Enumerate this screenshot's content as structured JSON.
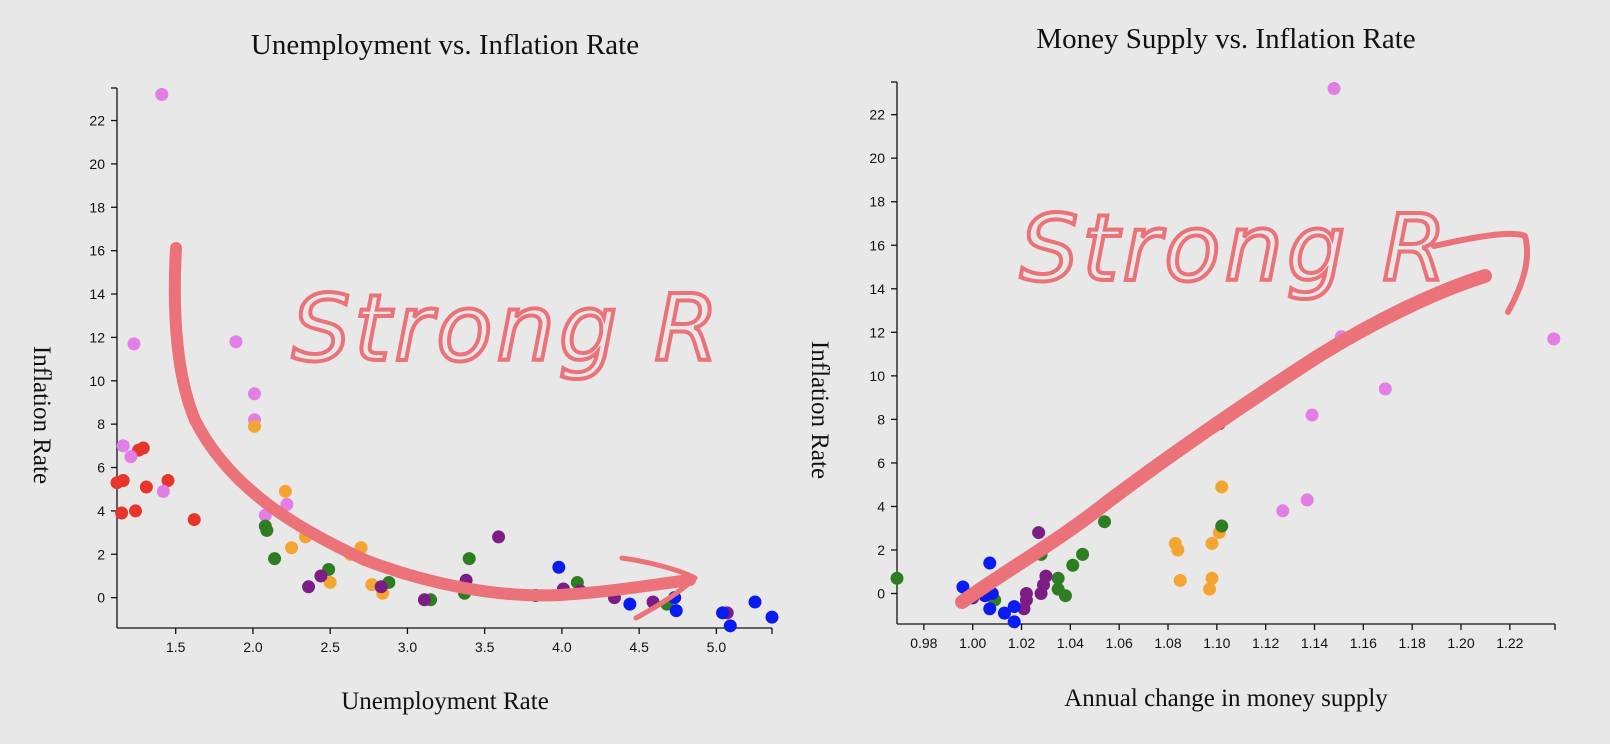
{
  "colors": {
    "red": "#e8352b",
    "violet": "#e27ee5",
    "orange": "#f4a531",
    "green": "#2e7d22",
    "purple": "#7b1d84",
    "blue": "#0a1bf0",
    "ink": "#ea7278",
    "background": "#e8e8e8"
  },
  "annotations": {
    "left_text": "Strong R",
    "right_text": "Strong R"
  },
  "chart_data": [
    {
      "type": "scatter",
      "title": "Unemployment vs. Inflation Rate",
      "xlabel": "Unemployment Rate",
      "ylabel": "Inflation Rate",
      "xlim": [
        1.12,
        5.36
      ],
      "ylim": [
        -1.4,
        23.5
      ],
      "grid": false,
      "x_ticks": [
        "1.5",
        "2.0",
        "2.5",
        "3.0",
        "3.5",
        "4.0",
        "4.5",
        "5.0"
      ],
      "y_ticks": [
        "0",
        "2",
        "4",
        "6",
        "8",
        "10",
        "12",
        "14",
        "16",
        "18",
        "20",
        "22"
      ],
      "points": [
        {
          "x": 1.12,
          "y": 5.3,
          "c": "red"
        },
        {
          "x": 1.16,
          "y": 5.4,
          "c": "red"
        },
        {
          "x": 1.15,
          "y": 3.9,
          "c": "red"
        },
        {
          "x": 1.24,
          "y": 4.0,
          "c": "red"
        },
        {
          "x": 1.26,
          "y": 6.8,
          "c": "red"
        },
        {
          "x": 1.29,
          "y": 6.9,
          "c": "red"
        },
        {
          "x": 1.31,
          "y": 5.1,
          "c": "red"
        },
        {
          "x": 1.45,
          "y": 5.4,
          "c": "red"
        },
        {
          "x": 1.62,
          "y": 3.6,
          "c": "red"
        },
        {
          "x": 1.16,
          "y": 7.0,
          "c": "violet"
        },
        {
          "x": 1.21,
          "y": 6.5,
          "c": "violet"
        },
        {
          "x": 1.23,
          "y": 11.7,
          "c": "violet"
        },
        {
          "x": 1.41,
          "y": 23.2,
          "c": "violet"
        },
        {
          "x": 1.42,
          "y": 4.9,
          "c": "violet"
        },
        {
          "x": 1.89,
          "y": 11.8,
          "c": "violet"
        },
        {
          "x": 2.01,
          "y": 9.4,
          "c": "violet"
        },
        {
          "x": 2.01,
          "y": 8.2,
          "c": "violet"
        },
        {
          "x": 2.08,
          "y": 3.8,
          "c": "violet"
        },
        {
          "x": 2.22,
          "y": 4.3,
          "c": "violet"
        },
        {
          "x": 2.01,
          "y": 7.9,
          "c": "orange"
        },
        {
          "x": 2.21,
          "y": 4.9,
          "c": "orange"
        },
        {
          "x": 2.25,
          "y": 2.3,
          "c": "orange"
        },
        {
          "x": 2.34,
          "y": 2.8,
          "c": "orange"
        },
        {
          "x": 2.5,
          "y": 0.7,
          "c": "orange"
        },
        {
          "x": 2.63,
          "y": 2.0,
          "c": "orange"
        },
        {
          "x": 2.66,
          "y": 2.0,
          "c": "orange"
        },
        {
          "x": 2.7,
          "y": 2.3,
          "c": "orange"
        },
        {
          "x": 2.77,
          "y": 0.6,
          "c": "orange"
        },
        {
          "x": 2.84,
          "y": 0.2,
          "c": "orange"
        },
        {
          "x": 2.08,
          "y": 3.3,
          "c": "green"
        },
        {
          "x": 2.09,
          "y": 3.1,
          "c": "green"
        },
        {
          "x": 2.14,
          "y": 1.8,
          "c": "green"
        },
        {
          "x": 2.49,
          "y": 1.3,
          "c": "green"
        },
        {
          "x": 2.88,
          "y": 0.7,
          "c": "green"
        },
        {
          "x": 3.15,
          "y": -0.1,
          "c": "green"
        },
        {
          "x": 3.37,
          "y": 0.2,
          "c": "green"
        },
        {
          "x": 3.4,
          "y": 1.8,
          "c": "green"
        },
        {
          "x": 4.1,
          "y": 0.7,
          "c": "green"
        },
        {
          "x": 4.68,
          "y": -0.3,
          "c": "green"
        },
        {
          "x": 2.36,
          "y": 0.5,
          "c": "purple"
        },
        {
          "x": 2.44,
          "y": 1.0,
          "c": "purple"
        },
        {
          "x": 2.83,
          "y": 0.5,
          "c": "purple"
        },
        {
          "x": 3.11,
          "y": -0.1,
          "c": "purple"
        },
        {
          "x": 3.38,
          "y": 0.8,
          "c": "purple"
        },
        {
          "x": 3.59,
          "y": 2.8,
          "c": "purple"
        },
        {
          "x": 3.83,
          "y": 0.1,
          "c": "purple"
        },
        {
          "x": 4.01,
          "y": 0.4,
          "c": "purple"
        },
        {
          "x": 4.12,
          "y": 0.3,
          "c": "purple"
        },
        {
          "x": 4.34,
          "y": 0.0,
          "c": "purple"
        },
        {
          "x": 4.59,
          "y": -0.2,
          "c": "purple"
        },
        {
          "x": 5.07,
          "y": -0.7,
          "c": "purple"
        },
        {
          "x": 3.98,
          "y": 1.4,
          "c": "blue"
        },
        {
          "x": 4.44,
          "y": -0.3,
          "c": "blue"
        },
        {
          "x": 4.73,
          "y": 0.0,
          "c": "blue"
        },
        {
          "x": 4.74,
          "y": -0.6,
          "c": "blue"
        },
        {
          "x": 5.04,
          "y": -0.7,
          "c": "blue"
        },
        {
          "x": 5.09,
          "y": -1.3,
          "c": "blue"
        },
        {
          "x": 5.25,
          "y": -0.2,
          "c": "blue"
        },
        {
          "x": 5.36,
          "y": -0.9,
          "c": "blue"
        }
      ]
    },
    {
      "type": "scatter",
      "title": "Money Supply vs. Inflation Rate",
      "xlabel": "Annual change in money supply",
      "ylabel": "Inflation Rate",
      "xlim": [
        0.969,
        1.2385
      ],
      "ylim": [
        -1.4,
        23.5
      ],
      "grid": false,
      "x_ticks": [
        "0.98",
        "1.00",
        "1.02",
        "1.04",
        "1.06",
        "1.08",
        "1.10",
        "1.12",
        "1.14",
        "1.16",
        "1.18",
        "1.20",
        "1.22"
      ],
      "y_ticks": [
        "0",
        "2",
        "4",
        "6",
        "8",
        "10",
        "12",
        "14",
        "16",
        "18",
        "20",
        "22"
      ],
      "points": [
        {
          "x": 1.101,
          "y": 7.8,
          "c": "red"
        },
        {
          "x": 1.148,
          "y": 23.2,
          "c": "violet"
        },
        {
          "x": 1.238,
          "y": 11.7,
          "c": "violet"
        },
        {
          "x": 1.151,
          "y": 11.8,
          "c": "violet"
        },
        {
          "x": 1.169,
          "y": 9.4,
          "c": "violet"
        },
        {
          "x": 1.139,
          "y": 8.2,
          "c": "violet"
        },
        {
          "x": 1.127,
          "y": 3.8,
          "c": "violet"
        },
        {
          "x": 1.137,
          "y": 4.3,
          "c": "violet"
        },
        {
          "x": 1.102,
          "y": 4.9,
          "c": "orange"
        },
        {
          "x": 1.083,
          "y": 2.3,
          "c": "orange"
        },
        {
          "x": 1.084,
          "y": 2.0,
          "c": "orange"
        },
        {
          "x": 1.085,
          "y": 0.6,
          "c": "orange"
        },
        {
          "x": 1.098,
          "y": 2.3,
          "c": "orange"
        },
        {
          "x": 1.101,
          "y": 2.8,
          "c": "orange"
        },
        {
          "x": 1.098,
          "y": 0.7,
          "c": "orange"
        },
        {
          "x": 1.097,
          "y": 0.2,
          "c": "orange"
        },
        {
          "x": 0.969,
          "y": 0.7,
          "c": "green"
        },
        {
          "x": 1.054,
          "y": 3.3,
          "c": "green"
        },
        {
          "x": 1.102,
          "y": 3.1,
          "c": "green"
        },
        {
          "x": 1.045,
          "y": 1.8,
          "c": "green"
        },
        {
          "x": 1.041,
          "y": 1.3,
          "c": "green"
        },
        {
          "x": 1.028,
          "y": 1.8,
          "c": "green"
        },
        {
          "x": 1.035,
          "y": 0.7,
          "c": "green"
        },
        {
          "x": 1.035,
          "y": 0.2,
          "c": "green"
        },
        {
          "x": 1.038,
          "y": -0.1,
          "c": "green"
        },
        {
          "x": 1.009,
          "y": -0.3,
          "c": "green"
        },
        {
          "x": 1.027,
          "y": 2.8,
          "c": "purple"
        },
        {
          "x": 1.03,
          "y": 0.8,
          "c": "purple"
        },
        {
          "x": 1.029,
          "y": 0.4,
          "c": "purple"
        },
        {
          "x": 1.028,
          "y": 0.0,
          "c": "purple"
        },
        {
          "x": 1.022,
          "y": 0.0,
          "c": "purple"
        },
        {
          "x": 1.022,
          "y": -0.3,
          "c": "purple"
        },
        {
          "x": 1.021,
          "y": -0.7,
          "c": "purple"
        },
        {
          "x": 1.0,
          "y": -0.2,
          "c": "purple"
        },
        {
          "x": 1.007,
          "y": 1.4,
          "c": "blue"
        },
        {
          "x": 0.996,
          "y": 0.3,
          "c": "blue"
        },
        {
          "x": 1.002,
          "y": 0.1,
          "c": "blue"
        },
        {
          "x": 1.005,
          "y": -0.1,
          "c": "blue"
        },
        {
          "x": 1.008,
          "y": 0.0,
          "c": "blue"
        },
        {
          "x": 1.007,
          "y": -0.7,
          "c": "blue"
        },
        {
          "x": 1.013,
          "y": -0.9,
          "c": "blue"
        },
        {
          "x": 1.017,
          "y": -0.6,
          "c": "blue"
        },
        {
          "x": 1.017,
          "y": -1.3,
          "c": "blue"
        },
        {
          "x": 0.999,
          "y": -0.2,
          "c": "blue"
        }
      ]
    }
  ]
}
